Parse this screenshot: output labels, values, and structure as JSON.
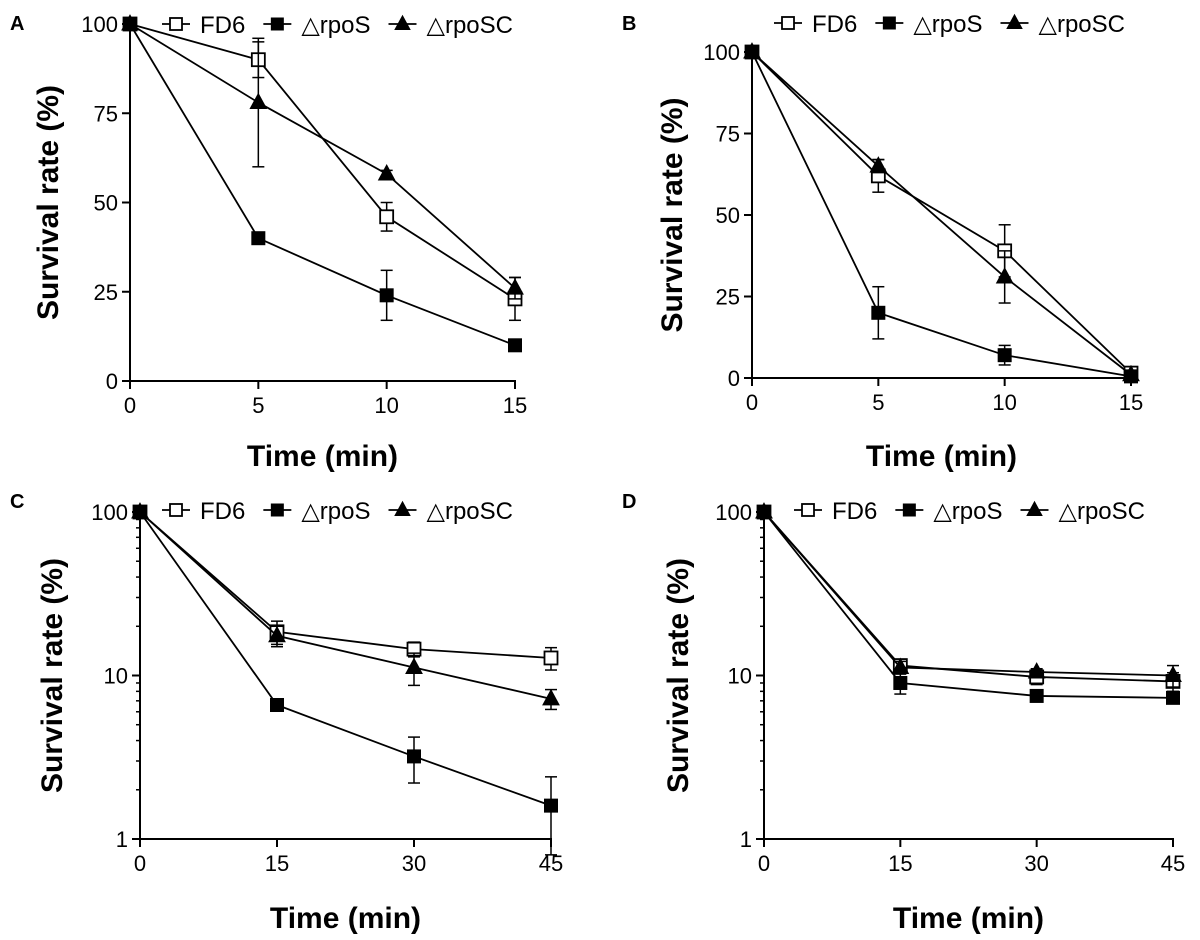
{
  "figure": {
    "series_colors": {
      "line": "#000000",
      "fill": "#ffffff"
    },
    "legend_labels": [
      "FD6",
      "△rpoS",
      "△rpoSC"
    ],
    "marker_names": [
      "open-square",
      "filled-square",
      "filled-triangle"
    ]
  },
  "chart_data": [
    {
      "panel": "A",
      "type": "line",
      "xlabel": "Time (min)",
      "ylabel": "Survival rate (%)",
      "yscale": "linear",
      "xlim": [
        0,
        15
      ],
      "ylim": [
        0,
        100
      ],
      "xticks": [
        0,
        5,
        10,
        15
      ],
      "xtick_labels": [
        "0",
        "5",
        "10",
        "15"
      ],
      "yticks": [
        0,
        25,
        50,
        75,
        100
      ],
      "ytick_labels": [
        "0",
        "25",
        "50",
        "75",
        "100"
      ],
      "legend_position": "top",
      "x": [
        0,
        5,
        10,
        15
      ],
      "series": [
        {
          "name": "FD6",
          "marker": "open-square",
          "values": [
            100,
            90,
            46,
            23
          ],
          "errors": [
            0,
            5,
            4,
            6
          ]
        },
        {
          "name": "△rpoS",
          "marker": "filled-square",
          "values": [
            100,
            40,
            24,
            10
          ],
          "errors": [
            0,
            1,
            7,
            1
          ]
        },
        {
          "name": "△rpoSC",
          "marker": "filled-triangle",
          "values": [
            100,
            78,
            58,
            26
          ],
          "errors": [
            0,
            18,
            1,
            3
          ]
        }
      ]
    },
    {
      "panel": "B",
      "type": "line",
      "xlabel": "Time (min)",
      "ylabel": "Survival rate (%)",
      "yscale": "linear",
      "xlim": [
        0,
        15
      ],
      "ylim": [
        0,
        100
      ],
      "xticks": [
        0,
        5,
        10,
        15
      ],
      "xtick_labels": [
        "0",
        "5",
        "10",
        "15"
      ],
      "yticks": [
        0,
        25,
        50,
        75,
        100
      ],
      "ytick_labels": [
        "0",
        "25",
        "50",
        "75",
        "100"
      ],
      "legend_position": "top",
      "x": [
        0,
        5,
        10,
        15
      ],
      "series": [
        {
          "name": "FD6",
          "marker": "open-square",
          "values": [
            100,
            62,
            39,
            1.5
          ],
          "errors": [
            0,
            5,
            8,
            1
          ]
        },
        {
          "name": "△rpoS",
          "marker": "filled-square",
          "values": [
            100,
            20,
            7,
            0.5
          ],
          "errors": [
            0,
            8,
            3,
            0.5
          ]
        },
        {
          "name": "△rpoSC",
          "marker": "filled-triangle",
          "values": [
            100,
            65,
            31,
            1
          ],
          "errors": [
            0,
            2,
            8,
            1
          ]
        }
      ]
    },
    {
      "panel": "C",
      "type": "line",
      "xlabel": "Time (min)",
      "ylabel": "Survival rate (%)",
      "yscale": "log",
      "xlim": [
        0,
        45
      ],
      "ylim": [
        1,
        100
      ],
      "xticks": [
        0,
        15,
        30,
        45
      ],
      "xtick_labels": [
        "0",
        "15",
        "30",
        "45"
      ],
      "yticks": [
        1,
        10,
        100
      ],
      "ytick_labels": [
        "1",
        "10",
        "100"
      ],
      "legend_position": "top",
      "x": [
        0,
        15,
        30,
        45
      ],
      "series": [
        {
          "name": "FD6",
          "marker": "open-square",
          "values": [
            100,
            18.5,
            14.5,
            12.8
          ],
          "errors": [
            0,
            3,
            1.5,
            2
          ]
        },
        {
          "name": "△rpoS",
          "marker": "filled-square",
          "values": [
            100,
            6.6,
            3.2,
            1.6
          ],
          "errors": [
            0,
            0.2,
            1,
            0.8
          ]
        },
        {
          "name": "△rpoSC",
          "marker": "filled-triangle",
          "values": [
            100,
            17.5,
            11.2,
            7.2
          ],
          "errors": [
            0,
            2.5,
            2.5,
            1
          ]
        }
      ]
    },
    {
      "panel": "D",
      "type": "line",
      "xlabel": "Time (min)",
      "ylabel": "Survival rate (%)",
      "yscale": "log",
      "xlim": [
        0,
        45
      ],
      "ylim": [
        1,
        100
      ],
      "xticks": [
        0,
        15,
        30,
        45
      ],
      "xtick_labels": [
        "0",
        "15",
        "30",
        "45"
      ],
      "yticks": [
        1,
        10,
        100
      ],
      "ytick_labels": [
        "1",
        "10",
        "100"
      ],
      "legend_position": "top",
      "x": [
        0,
        15,
        30,
        45
      ],
      "series": [
        {
          "name": "FD6",
          "marker": "open-square",
          "values": [
            100,
            11.5,
            9.8,
            9.2
          ],
          "errors": [
            0,
            1,
            1,
            1.2
          ]
        },
        {
          "name": "△rpoS",
          "marker": "filled-square",
          "values": [
            100,
            9,
            7.5,
            7.3
          ],
          "errors": [
            0,
            1.3,
            0.5,
            0.5
          ]
        },
        {
          "name": "△rpoSC",
          "marker": "filled-triangle",
          "values": [
            100,
            11.2,
            10.5,
            10
          ],
          "errors": [
            0,
            1,
            0.5,
            1.5
          ]
        }
      ]
    }
  ]
}
